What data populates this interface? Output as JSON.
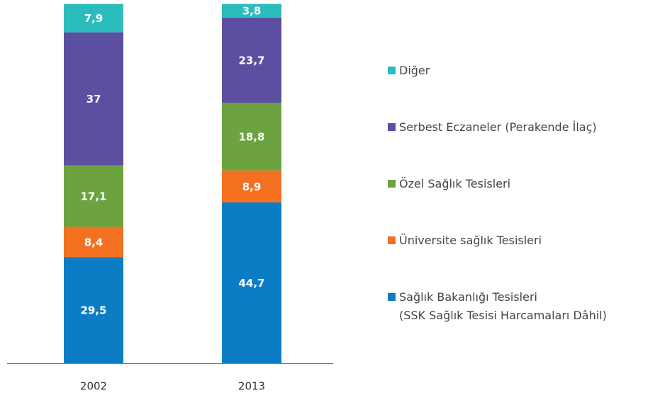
{
  "chart_data": {
    "type": "stacked_bar",
    "categories": [
      "2002",
      "2013"
    ],
    "series": [
      {
        "name": "Sağlık Bakanlığı Tesisleri\n(SSK Sağlık Tesisi Harcamaları Dâhil)",
        "color": "#0b7dc5",
        "values": [
          29.5,
          44.7
        ],
        "value_labels": [
          "29,5",
          "44,7"
        ]
      },
      {
        "name": "Üniversite sağlık Tesisleri",
        "color": "#f37021",
        "values": [
          8.4,
          8.9
        ],
        "value_labels": [
          "8,4",
          "8,9"
        ]
      },
      {
        "name": "Özel Sağlık Tesisleri",
        "color": "#6ca33f",
        "values": [
          17.1,
          18.8
        ],
        "value_labels": [
          "17,1",
          "18,8"
        ]
      },
      {
        "name": "Serbest Eczaneler (Perakende İlaç)",
        "color": "#5c4fa1",
        "values": [
          37,
          23.7
        ],
        "value_labels": [
          "37",
          "23,7"
        ]
      },
      {
        "name": "Diğer",
        "color": "#2bbcbd",
        "values": [
          7.9,
          3.8
        ],
        "value_labels": [
          "7,9",
          "3,8"
        ]
      }
    ],
    "ylim": [
      0,
      100
    ]
  }
}
